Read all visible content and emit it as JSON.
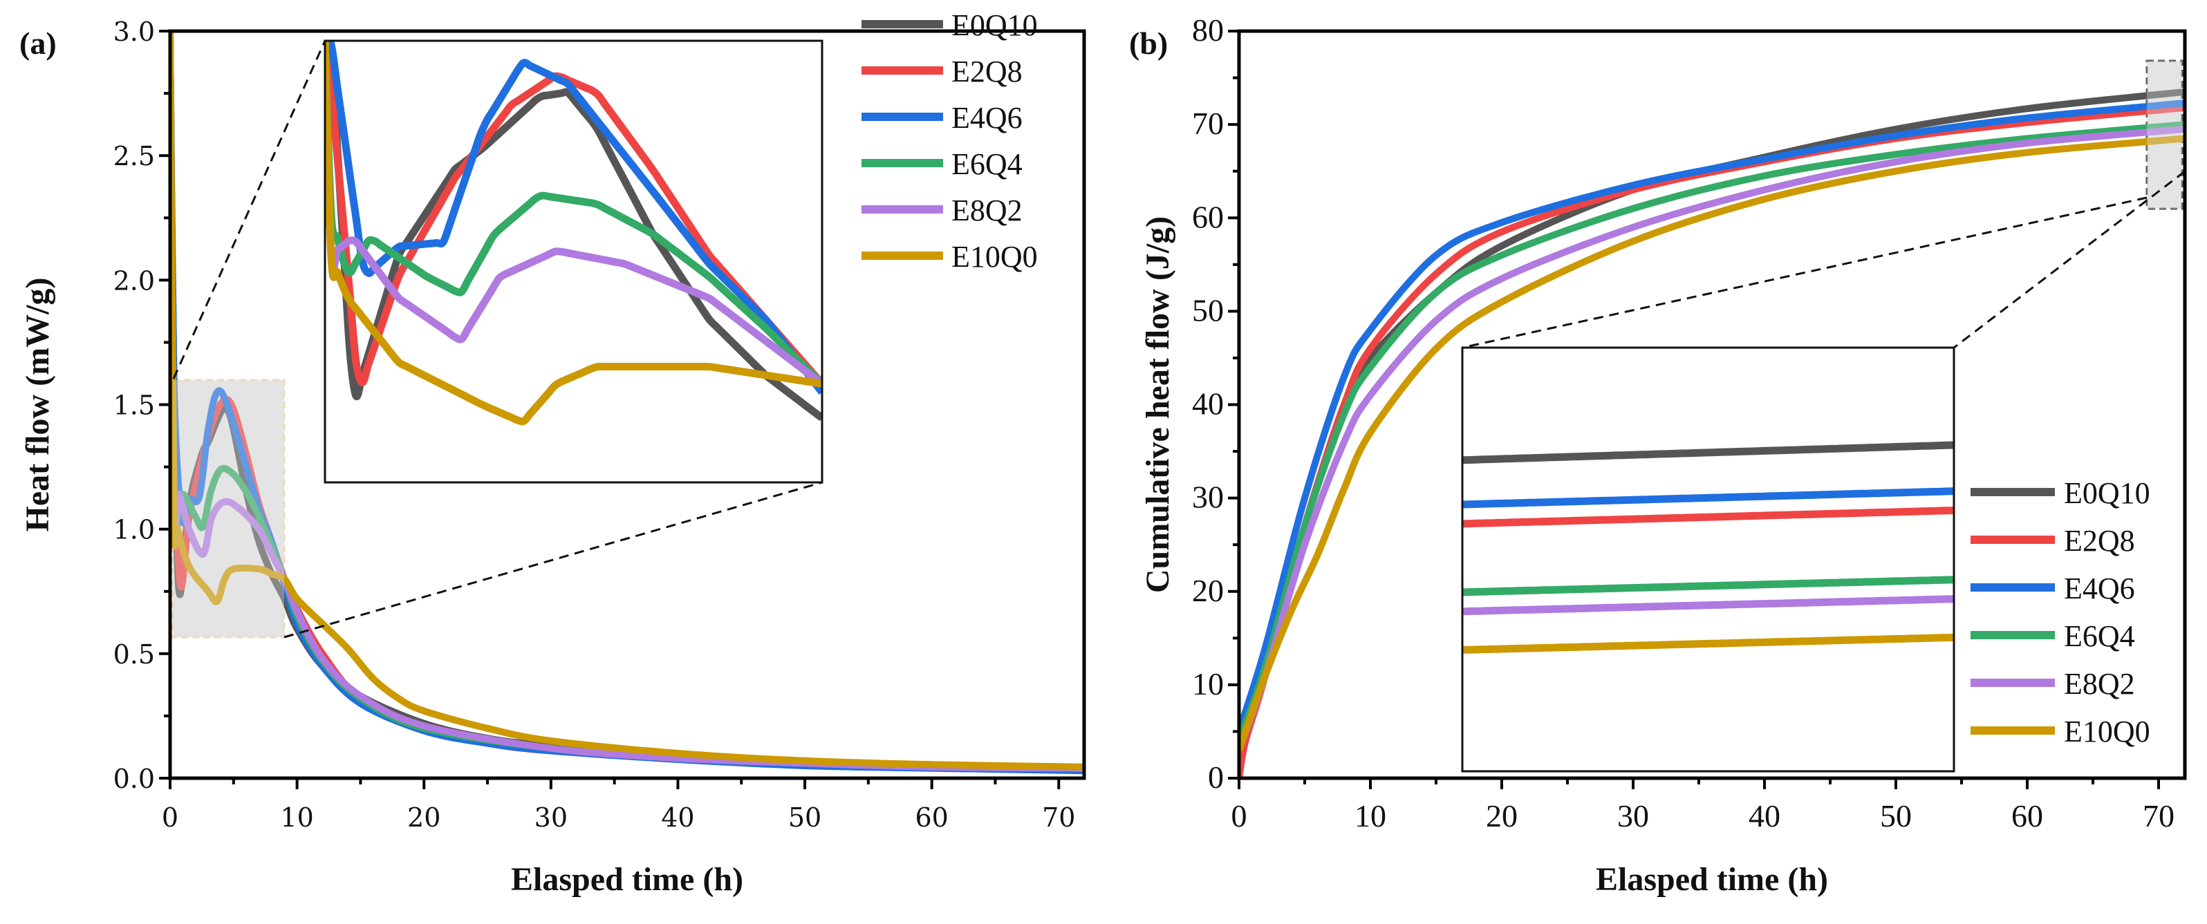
{
  "chart_data": [
    {
      "panel_label": "(a)",
      "type": "line",
      "xlabel": "Elasped time (h)",
      "ylabel": "Heat flow (mW/g)",
      "xlim": [
        0,
        72
      ],
      "ylim": [
        0,
        3
      ],
      "xticks": [
        0,
        10,
        20,
        30,
        40,
        50,
        60,
        70
      ],
      "yticks": [
        0.0,
        0.5,
        1.0,
        1.5,
        2.0,
        2.5,
        3.0
      ],
      "legend": "top-right",
      "inset": {
        "xlim": [
          0.2,
          9
        ],
        "ylim": [
          0.57,
          1.6
        ]
      },
      "series": [
        {
          "name": "E0Q10",
          "color": "#555555",
          "points": [
            [
              0,
              3.2
            ],
            [
              0.3,
              1.6
            ],
            [
              0.7,
              0.75
            ],
            [
              1.5,
              1.1
            ],
            [
              2.5,
              1.3
            ],
            [
              3,
              1.35
            ],
            [
              4,
              1.47
            ],
            [
              4.5,
              1.48
            ],
            [
              5,
              1.4
            ],
            [
              6,
              1.15
            ],
            [
              7,
              0.95
            ],
            [
              8,
              0.82
            ],
            [
              9,
              0.72
            ],
            [
              10,
              0.6
            ],
            [
              12,
              0.45
            ],
            [
              15,
              0.33
            ],
            [
              20,
              0.22
            ],
            [
              25,
              0.16
            ],
            [
              30,
              0.13
            ],
            [
              40,
              0.09
            ],
            [
              50,
              0.065
            ],
            [
              60,
              0.05
            ],
            [
              72,
              0.04
            ]
          ]
        },
        {
          "name": "E2Q8",
          "color": "#EF4444",
          "points": [
            [
              0,
              3.2
            ],
            [
              0.3,
              1.5
            ],
            [
              0.8,
              0.78
            ],
            [
              1.5,
              1.05
            ],
            [
              2.5,
              1.28
            ],
            [
              3.5,
              1.45
            ],
            [
              4.3,
              1.52
            ],
            [
              5,
              1.48
            ],
            [
              6,
              1.3
            ],
            [
              7,
              1.1
            ],
            [
              8,
              0.95
            ],
            [
              9,
              0.8
            ],
            [
              10,
              0.68
            ],
            [
              12,
              0.5
            ],
            [
              15,
              0.32
            ],
            [
              20,
              0.2
            ],
            [
              25,
              0.14
            ],
            [
              30,
              0.11
            ],
            [
              40,
              0.08
            ],
            [
              50,
              0.055
            ],
            [
              60,
              0.045
            ],
            [
              72,
              0.035
            ]
          ]
        },
        {
          "name": "E4Q6",
          "color": "#1F6FE0",
          "points": [
            [
              0,
              3.2
            ],
            [
              0.3,
              1.6
            ],
            [
              0.9,
              1.05
            ],
            [
              1.5,
              1.12
            ],
            [
              2.3,
              1.13
            ],
            [
              3,
              1.4
            ],
            [
              3.7,
              1.55
            ],
            [
              4.5,
              1.5
            ],
            [
              6,
              1.25
            ],
            [
              7,
              1.08
            ],
            [
              8,
              0.95
            ],
            [
              9,
              0.78
            ],
            [
              10,
              0.62
            ],
            [
              12,
              0.45
            ],
            [
              15,
              0.3
            ],
            [
              20,
              0.19
            ],
            [
              25,
              0.14
            ],
            [
              30,
              0.11
            ],
            [
              40,
              0.075
            ],
            [
              50,
              0.05
            ],
            [
              60,
              0.04
            ],
            [
              72,
              0.03
            ]
          ]
        },
        {
          "name": "E6Q4",
          "color": "#33AA66",
          "points": [
            [
              0,
              3.2
            ],
            [
              0.3,
              1.2
            ],
            [
              0.6,
              1.05
            ],
            [
              1,
              1.14
            ],
            [
              2,
              1.05
            ],
            [
              2.6,
              1.01
            ],
            [
              3.2,
              1.15
            ],
            [
              4,
              1.24
            ],
            [
              5,
              1.22
            ],
            [
              6,
              1.15
            ],
            [
              7,
              1.05
            ],
            [
              8,
              0.93
            ],
            [
              9,
              0.8
            ],
            [
              10,
              0.65
            ],
            [
              12,
              0.47
            ],
            [
              15,
              0.32
            ],
            [
              20,
              0.2
            ],
            [
              30,
              0.12
            ],
            [
              40,
              0.08
            ],
            [
              50,
              0.06
            ],
            [
              60,
              0.045
            ],
            [
              72,
              0.04
            ]
          ]
        },
        {
          "name": "E8Q2",
          "color": "#B07AE0",
          "points": [
            [
              0,
              3.2
            ],
            [
              0.3,
              1.1
            ],
            [
              0.7,
              1.14
            ],
            [
              1.5,
              1.0
            ],
            [
              2.6,
              0.9
            ],
            [
              3.3,
              1.05
            ],
            [
              4.3,
              1.11
            ],
            [
              5.5,
              1.08
            ],
            [
              7,
              1.0
            ],
            [
              8,
              0.9
            ],
            [
              9,
              0.8
            ],
            [
              10,
              0.67
            ],
            [
              12,
              0.48
            ],
            [
              15,
              0.33
            ],
            [
              20,
              0.21
            ],
            [
              30,
              0.12
            ],
            [
              40,
              0.08
            ],
            [
              50,
              0.06
            ],
            [
              60,
              0.045
            ],
            [
              72,
              0.04
            ]
          ]
        },
        {
          "name": "E10Q0",
          "color": "#CC9900",
          "points": [
            [
              0,
              3.2
            ],
            [
              0.3,
              1.1
            ],
            [
              0.6,
              1.0
            ],
            [
              1.5,
              0.85
            ],
            [
              3,
              0.75
            ],
            [
              3.7,
              0.71
            ],
            [
              4.3,
              0.8
            ],
            [
              5,
              0.84
            ],
            [
              7,
              0.84
            ],
            [
              8,
              0.82
            ],
            [
              9,
              0.8
            ],
            [
              10,
              0.72
            ],
            [
              12,
              0.62
            ],
            [
              14,
              0.52
            ],
            [
              16,
              0.4
            ],
            [
              18,
              0.32
            ],
            [
              20,
              0.27
            ],
            [
              25,
              0.2
            ],
            [
              30,
              0.15
            ],
            [
              40,
              0.1
            ],
            [
              50,
              0.07
            ],
            [
              60,
              0.055
            ],
            [
              72,
              0.045
            ]
          ]
        }
      ]
    },
    {
      "panel_label": "(b)",
      "type": "line",
      "xlabel": "Elasped time (h)",
      "ylabel": "Cumulative heat flow (J/g)",
      "xlim": [
        0,
        72
      ],
      "ylim": [
        0,
        80
      ],
      "xticks": [
        0,
        10,
        20,
        30,
        40,
        50,
        60,
        70
      ],
      "yticks": [
        0,
        10,
        20,
        30,
        40,
        50,
        60,
        70,
        80
      ],
      "legend": "bottom-right",
      "inset": {
        "xlim": [
          69.2,
          71.8
        ],
        "ylim": [
          65,
          76
        ]
      },
      "series": [
        {
          "name": "E0Q10",
          "color": "#555555",
          "points": [
            [
              0,
              0
            ],
            [
              0.2,
              5
            ],
            [
              2,
              12
            ],
            [
              5,
              27
            ],
            [
              8,
              40
            ],
            [
              10,
              45
            ],
            [
              15,
              52
            ],
            [
              20,
              57
            ],
            [
              30,
              63
            ],
            [
              40,
              66.5
            ],
            [
              50,
              69.5
            ],
            [
              60,
              71.7
            ],
            [
              72,
              73.5
            ]
          ]
        },
        {
          "name": "E2Q8",
          "color": "#EF4444",
          "points": [
            [
              0,
              0
            ],
            [
              0.5,
              4
            ],
            [
              2,
              11
            ],
            [
              5,
              27
            ],
            [
              8,
              40
            ],
            [
              10,
              46
            ],
            [
              15,
              54
            ],
            [
              20,
              58.5
            ],
            [
              30,
              63
            ],
            [
              40,
              66
            ],
            [
              50,
              68.5
            ],
            [
              60,
              70.2
            ],
            [
              72,
              71.8
            ]
          ]
        },
        {
          "name": "E4Q6",
          "color": "#1F6FE0",
          "points": [
            [
              0,
              5
            ],
            [
              2,
              14
            ],
            [
              5,
              30
            ],
            [
              8,
              43
            ],
            [
              10,
              48
            ],
            [
              15,
              56
            ],
            [
              20,
              59.5
            ],
            [
              30,
              63.5
            ],
            [
              40,
              66.3
            ],
            [
              50,
              68.8
            ],
            [
              60,
              70.7
            ],
            [
              72,
              72.3
            ]
          ]
        },
        {
          "name": "E6Q4",
          "color": "#33AA66",
          "points": [
            [
              0,
              4
            ],
            [
              2,
              12
            ],
            [
              5,
              27
            ],
            [
              8,
              39
            ],
            [
              10,
              44
            ],
            [
              15,
              52
            ],
            [
              20,
              56
            ],
            [
              30,
              61
            ],
            [
              40,
              64.5
            ],
            [
              50,
              66.8
            ],
            [
              60,
              68.5
            ],
            [
              72,
              70
            ]
          ]
        },
        {
          "name": "E8Q2",
          "color": "#B07AE0",
          "points": [
            [
              0,
              3
            ],
            [
              2,
              11
            ],
            [
              5,
              25
            ],
            [
              8,
              36
            ],
            [
              10,
              41
            ],
            [
              15,
              49
            ],
            [
              20,
              53.5
            ],
            [
              30,
              59
            ],
            [
              40,
              63
            ],
            [
              50,
              66
            ],
            [
              60,
              68
            ],
            [
              72,
              69.5
            ]
          ]
        },
        {
          "name": "E10Q0",
          "color": "#CC9900",
          "points": [
            [
              0,
              3
            ],
            [
              2,
              11
            ],
            [
              4,
              18
            ],
            [
              6,
              24
            ],
            [
              8,
              31
            ],
            [
              10,
              37
            ],
            [
              15,
              46
            ],
            [
              20,
              51
            ],
            [
              30,
              57.5
            ],
            [
              40,
              62
            ],
            [
              50,
              65
            ],
            [
              60,
              67
            ],
            [
              72,
              68.5
            ]
          ]
        }
      ]
    }
  ]
}
